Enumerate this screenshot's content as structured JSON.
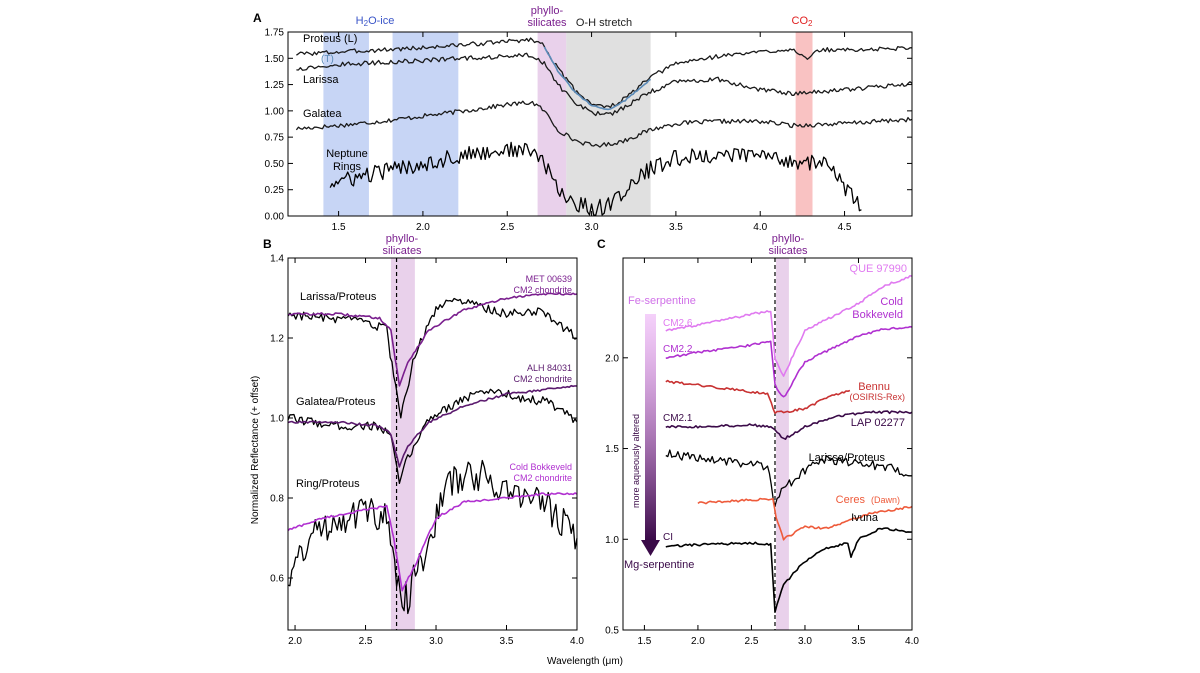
{
  "figure": {
    "ylabel": "Normalized Reflectance (+ offset)",
    "xlabel": "Wavelength (μm)"
  },
  "chart_data": [
    {
      "panel": "A",
      "type": "line",
      "xlim": [
        1.2,
        4.9
      ],
      "ylim": [
        0.0,
        1.75
      ],
      "xticks": [
        1.5,
        2.0,
        2.5,
        3.0,
        3.5,
        4.0,
        4.5
      ],
      "xtick_labels": [
        "1.5",
        "2.0",
        "2.5",
        "3.0",
        "3.5",
        "4.0",
        "4.5"
      ],
      "yticks": [
        0.0,
        0.25,
        0.5,
        0.75,
        1.0,
        1.25,
        1.5,
        1.75
      ],
      "ytick_labels": [
        "0.00",
        "0.25",
        "0.50",
        "0.75",
        "1.00",
        "1.25",
        "1.50",
        "1.75"
      ],
      "bands": [
        {
          "label": "H2O-ice",
          "x0": 1.41,
          "x1": 1.68,
          "color": "#b9cbf3",
          "label_color": "#3a55c8"
        },
        {
          "label": "",
          "x0": 1.82,
          "x1": 2.21,
          "color": "#b9cbf3"
        },
        {
          "label": "phyllo-\nsilicates",
          "x0": 2.68,
          "x1": 2.85,
          "color": "#e3c5e6",
          "label_color": "#7a1f8e"
        },
        {
          "label": "O-H stretch",
          "x0": 2.85,
          "x1": 3.35,
          "color": "#d8d8d8",
          "label_color": "#222222"
        },
        {
          "label": "CO2",
          "x0": 4.21,
          "x1": 4.31,
          "color": "#f7b3b3",
          "label_color": "#e02020"
        }
      ],
      "series": [
        {
          "name": "Proteus (L)",
          "color": "#1a1a1a",
          "x": [
            1.25,
            1.5,
            1.75,
            2.0,
            2.25,
            2.5,
            2.65,
            2.72,
            2.8,
            2.9,
            3.0,
            3.1,
            3.2,
            3.35,
            3.5,
            3.75,
            4.0,
            4.2,
            4.28,
            4.35,
            4.6,
            4.9
          ],
          "y": [
            1.54,
            1.56,
            1.58,
            1.6,
            1.63,
            1.66,
            1.68,
            1.62,
            1.4,
            1.2,
            1.07,
            1.03,
            1.12,
            1.32,
            1.45,
            1.52,
            1.56,
            1.59,
            1.48,
            1.58,
            1.58,
            1.6
          ]
        },
        {
          "name": "Larissa",
          "color": "#1a1a1a",
          "x": [
            1.25,
            1.5,
            1.75,
            2.0,
            2.25,
            2.5,
            2.65,
            2.72,
            2.8,
            2.9,
            3.0,
            3.1,
            3.2,
            3.35,
            3.5,
            3.75,
            4.0,
            4.2,
            4.5,
            4.9
          ],
          "y": [
            1.4,
            1.44,
            1.46,
            1.48,
            1.5,
            1.52,
            1.53,
            1.45,
            1.25,
            1.08,
            0.98,
            0.96,
            1.04,
            1.18,
            1.28,
            1.3,
            1.2,
            1.16,
            1.2,
            1.26
          ]
        },
        {
          "name": "Galatea",
          "color": "#1a1a1a",
          "x": [
            1.25,
            1.5,
            1.75,
            2.0,
            2.25,
            2.5,
            2.65,
            2.72,
            2.8,
            2.9,
            3.0,
            3.1,
            3.2,
            3.35,
            3.5,
            3.75,
            4.0,
            4.2,
            4.5,
            4.9
          ],
          "y": [
            0.83,
            0.86,
            0.9,
            0.95,
            1.0,
            1.06,
            1.08,
            1.0,
            0.82,
            0.72,
            0.67,
            0.68,
            0.72,
            0.82,
            0.88,
            0.9,
            0.9,
            0.86,
            0.88,
            0.92
          ]
        },
        {
          "name": "Neptune Rings",
          "color": "#000000",
          "x": [
            1.45,
            1.6,
            1.75,
            2.0,
            2.25,
            2.5,
            2.65,
            2.72,
            2.8,
            2.9,
            3.0,
            3.1,
            3.2,
            3.35,
            3.5,
            3.75,
            4.0,
            4.2,
            4.4,
            4.6
          ],
          "y": [
            0.31,
            0.36,
            0.42,
            0.5,
            0.58,
            0.63,
            0.62,
            0.5,
            0.25,
            0.12,
            0.07,
            0.1,
            0.25,
            0.45,
            0.55,
            0.58,
            0.58,
            0.52,
            0.5,
            0.06
          ]
        },
        {
          "name": "(T)",
          "color": "#5b8bb8",
          "x": [
            2.72,
            2.8,
            2.9,
            3.0,
            3.1,
            3.2,
            3.35
          ],
          "y": [
            1.61,
            1.38,
            1.18,
            1.05,
            1.01,
            1.1,
            1.3
          ]
        }
      ],
      "labels": [
        "Proteus (L)",
        "(T)",
        "Larissa",
        "Galatea",
        "Neptune",
        "Rings"
      ]
    },
    {
      "panel": "B",
      "type": "line",
      "xlim": [
        1.95,
        4.0
      ],
      "ylim": [
        0.47,
        1.4
      ],
      "xticks": [
        2.0,
        2.5,
        3.0,
        3.5,
        4.0
      ],
      "xtick_labels": [
        "2.0",
        "2.5",
        "3.0",
        "3.5",
        "4.0"
      ],
      "yticks": [
        0.6,
        0.8,
        1.0,
        1.2,
        1.4
      ],
      "ytick_labels": [
        "0.6",
        "0.8",
        "1.0",
        "1.2",
        "1.4"
      ],
      "band": {
        "x0": 2.68,
        "x1": 2.85,
        "color": "#e3c5e6",
        "label": "phyllo-\nsilicates",
        "label_color": "#7a1f8e"
      },
      "dashed_line_x": 2.72,
      "series": [
        {
          "name": "Larissa/Proteus",
          "color": "#000000",
          "x": [
            1.95,
            2.2,
            2.5,
            2.65,
            2.7,
            2.75,
            2.85,
            3.0,
            3.1,
            3.3,
            3.5,
            3.75,
            4.0
          ],
          "y": [
            1.26,
            1.25,
            1.24,
            1.22,
            1.1,
            1.0,
            1.16,
            1.27,
            1.3,
            1.28,
            1.26,
            1.27,
            1.2
          ]
        },
        {
          "name": "MET 00639 CM2 chondrite",
          "color": "#7a1f8e",
          "x": [
            1.95,
            2.3,
            2.6,
            2.68,
            2.74,
            2.8,
            2.95,
            3.2,
            3.5,
            3.75,
            4.0
          ],
          "y": [
            1.26,
            1.26,
            1.25,
            1.22,
            1.08,
            1.14,
            1.22,
            1.27,
            1.3,
            1.31,
            1.31
          ]
        },
        {
          "name": "Galatea/Proteus",
          "color": "#000000",
          "x": [
            1.95,
            2.3,
            2.6,
            2.68,
            2.74,
            2.8,
            2.95,
            3.2,
            3.4,
            3.6,
            3.8,
            4.0
          ],
          "y": [
            1.0,
            0.98,
            0.98,
            0.95,
            0.84,
            0.9,
            1.0,
            1.05,
            1.07,
            1.05,
            1.04,
            0.99
          ]
        },
        {
          "name": "ALH 84031 CM2 chondrite",
          "color": "#5b1a6e",
          "x": [
            1.95,
            2.3,
            2.6,
            2.68,
            2.74,
            2.8,
            2.95,
            3.2,
            3.5,
            3.75,
            4.0
          ],
          "y": [
            0.99,
            0.99,
            0.98,
            0.96,
            0.88,
            0.93,
            0.99,
            1.03,
            1.06,
            1.07,
            1.08
          ]
        },
        {
          "name": "Ring/Proteus",
          "color": "#000000",
          "x": [
            1.95,
            2.1,
            2.3,
            2.5,
            2.65,
            2.72,
            2.8,
            2.95,
            3.1,
            3.3,
            3.5,
            3.7,
            3.85,
            4.0
          ],
          "y": [
            0.6,
            0.7,
            0.75,
            0.77,
            0.75,
            0.58,
            0.55,
            0.7,
            0.84,
            0.86,
            0.82,
            0.8,
            0.76,
            0.7
          ]
        },
        {
          "name": "Cold Bokkeveld CM2 chondrite",
          "color": "#b030d0",
          "x": [
            1.95,
            2.2,
            2.5,
            2.65,
            2.7,
            2.76,
            2.85,
            3.0,
            3.2,
            3.5,
            3.75,
            4.0
          ],
          "y": [
            0.72,
            0.75,
            0.77,
            0.78,
            0.7,
            0.57,
            0.63,
            0.75,
            0.79,
            0.8,
            0.81,
            0.81
          ]
        }
      ],
      "labels": [
        "Larissa/Proteus",
        "MET 00639",
        "CM2 chondrite",
        "ALH 84031",
        "CM2 chondrite",
        "Galatea/Proteus",
        "Ring/Proteus",
        "Cold Bokkeveld",
        "CM2 chondrite"
      ]
    },
    {
      "panel": "C",
      "type": "line",
      "xlim": [
        1.3,
        4.0
      ],
      "ylim": [
        0.5,
        2.55
      ],
      "xticks": [
        1.5,
        2.0,
        2.5,
        3.0,
        3.5,
        4.0
      ],
      "xtick_labels": [
        "1.5",
        "2.0",
        "2.5",
        "3.0",
        "3.5",
        "4.0"
      ],
      "yticks": [
        0.5,
        1.0,
        1.5,
        2.0
      ],
      "ytick_labels": [
        "0.5",
        "1.0",
        "1.5",
        "2.0"
      ],
      "band": {
        "x0": 2.73,
        "x1": 2.85,
        "color": "#e3c5e6",
        "label": "phyllo-\nsilicates",
        "label_color": "#7a1f8e"
      },
      "dashed_line_x": 2.72,
      "gradient_arrow": {
        "top_label": "Fe-serpentine",
        "bottom_label": "Mg-serpentine",
        "side_label": "more aqueously altered",
        "top_color": "#e07af0",
        "bottom_color": "#3a0a48"
      },
      "series": [
        {
          "name": "QUE 97990",
          "color": "#e07af0",
          "x": [
            1.7,
            2.0,
            2.5,
            2.68,
            2.72,
            2.8,
            3.0,
            3.5,
            3.75,
            4.0
          ],
          "y": [
            2.15,
            2.18,
            2.24,
            2.26,
            2.0,
            1.9,
            2.15,
            2.3,
            2.4,
            2.45
          ]
        },
        {
          "name": "Cold Bokkeveld",
          "color": "#b030d0",
          "x": [
            1.7,
            2.0,
            2.5,
            2.68,
            2.72,
            2.8,
            3.0,
            3.5,
            3.75,
            4.0
          ],
          "y": [
            2.0,
            2.03,
            2.07,
            2.09,
            1.85,
            1.78,
            1.98,
            2.12,
            2.16,
            2.17
          ]
        },
        {
          "name": "Bennu (OSIRIS-Rex)",
          "color": "#c83232",
          "x": [
            1.7,
            2.0,
            2.4,
            2.65,
            2.72,
            2.8,
            3.0,
            3.2,
            3.42
          ],
          "y": [
            1.87,
            1.85,
            1.82,
            1.8,
            1.7,
            1.7,
            1.72,
            1.78,
            1.82
          ]
        },
        {
          "name": "LAP 02277",
          "color": "#3a0a48",
          "x": [
            1.7,
            2.0,
            2.5,
            2.68,
            2.72,
            2.8,
            3.0,
            3.3,
            3.6,
            4.0
          ],
          "y": [
            1.62,
            1.62,
            1.63,
            1.62,
            1.6,
            1.55,
            1.62,
            1.68,
            1.7,
            1.7
          ]
        },
        {
          "name": "Larissa/Proteus",
          "color": "#000000",
          "x": [
            1.7,
            2.0,
            2.4,
            2.65,
            2.72,
            2.8,
            3.0,
            3.2,
            3.5,
            3.75,
            4.0
          ],
          "y": [
            1.47,
            1.45,
            1.42,
            1.4,
            1.2,
            1.28,
            1.38,
            1.44,
            1.42,
            1.4,
            1.35
          ]
        },
        {
          "name": "Ceres (Dawn)",
          "color": "#ee5a3a",
          "x": [
            2.0,
            2.3,
            2.6,
            2.7,
            2.73,
            2.8,
            3.0,
            3.2,
            3.4,
            3.6,
            3.8,
            4.0
          ],
          "y": [
            1.2,
            1.21,
            1.22,
            1.22,
            1.12,
            1.0,
            1.07,
            1.06,
            1.1,
            1.14,
            1.16,
            1.18
          ]
        },
        {
          "name": "Ivuna",
          "color": "#000000",
          "x": [
            1.7,
            2.0,
            2.5,
            2.68,
            2.72,
            2.8,
            3.0,
            3.2,
            3.4,
            3.43,
            3.5,
            3.7,
            4.0
          ],
          "y": [
            0.96,
            0.97,
            0.98,
            0.97,
            0.6,
            0.75,
            0.88,
            0.95,
            0.98,
            0.9,
            1.0,
            1.06,
            1.04
          ]
        }
      ],
      "labels": [
        "QUE 97990",
        "Cold",
        "Bokkeveld",
        "Bennu",
        "(OSIRIS-Rex)",
        "LAP 02277",
        "Larissa/Proteus",
        "Ceres",
        "(Dawn)",
        "Ivuna",
        "CM2.6",
        "CM2.2",
        "CM2.1",
        "CI"
      ]
    }
  ]
}
